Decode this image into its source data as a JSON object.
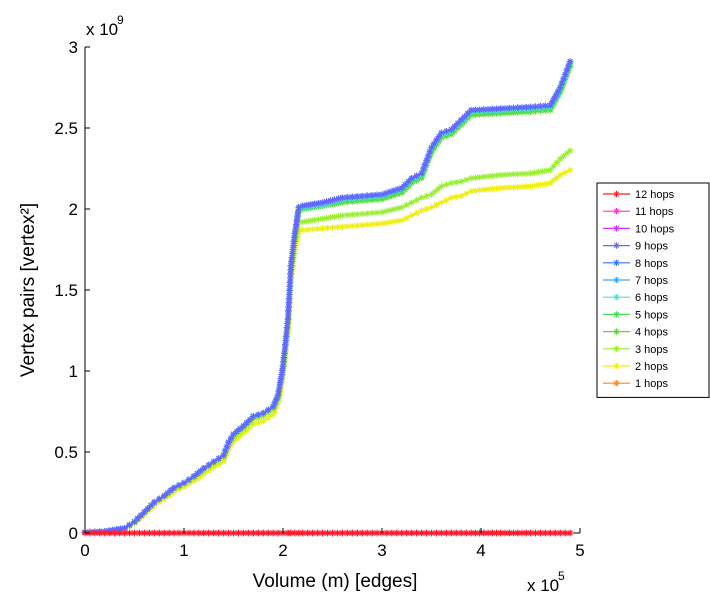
{
  "chart_data": {
    "type": "line",
    "xlabel": "Volume (m) [edges]",
    "ylabel": "Vertex pairs [vertex²]",
    "x_multiplier": "x 10",
    "x_exponent": "5",
    "y_multiplier": "x 10",
    "y_exponent": "9",
    "xlim": [
      0,
      500000
    ],
    "ylim": [
      0,
      3000000000
    ],
    "x_ticks": [
      0,
      100000,
      200000,
      300000,
      400000,
      500000
    ],
    "x_tick_labels": [
      "0",
      "1",
      "2",
      "3",
      "4",
      "5"
    ],
    "y_ticks": [
      0,
      500000000,
      1000000000,
      1500000000,
      2000000000,
      2500000000,
      3000000000
    ],
    "y_tick_labels": [
      "0",
      "0.5",
      "1",
      "1.5",
      "2",
      "2.5",
      "3"
    ],
    "grid": false,
    "legend_position": "right",
    "marker": "asterisk",
    "x": [
      0,
      20000,
      40000,
      50000,
      60000,
      70000,
      80000,
      90000,
      100000,
      110000,
      120000,
      130000,
      140000,
      145000,
      150000,
      160000,
      170000,
      180000,
      190000,
      195000,
      200000,
      205000,
      208000,
      212000,
      216000,
      220000,
      240000,
      260000,
      280000,
      300000,
      320000,
      330000,
      340000,
      350000,
      360000,
      370000,
      380000,
      390000,
      420000,
      450000,
      470000,
      480000,
      490000
    ],
    "series": [
      {
        "name": "12 hops",
        "color": "#ff1a1a",
        "values": [
          0,
          0,
          0,
          0,
          0,
          0,
          0,
          0,
          0,
          0,
          0,
          0,
          0,
          0,
          0,
          0,
          0,
          0,
          0,
          0,
          0,
          0,
          0,
          0,
          0,
          0,
          0,
          0,
          0,
          0,
          0,
          0,
          0,
          0,
          0,
          0,
          0,
          0,
          0,
          0,
          0,
          0,
          0
        ]
      },
      {
        "name": "11 hops",
        "color": "#ff33cc",
        "values": [
          0,
          0,
          0,
          0,
          0,
          0,
          0,
          0,
          0,
          0,
          0,
          0,
          0,
          0,
          0,
          0,
          0,
          0,
          0,
          0,
          0,
          0,
          0,
          0,
          0,
          0,
          0,
          0,
          0,
          0,
          0,
          0,
          0,
          0,
          0,
          0,
          0,
          0,
          0,
          0,
          0,
          0,
          0
        ]
      },
      {
        "name": "10 hops",
        "color": "#cc33ff",
        "values": [
          0,
          0,
          0,
          0,
          0,
          0,
          0,
          0,
          0,
          0,
          0,
          0,
          0,
          0,
          0,
          0,
          0,
          0,
          0,
          0,
          0,
          0,
          0,
          0,
          0,
          0,
          0,
          0,
          0,
          0,
          0,
          0,
          0,
          0,
          0,
          0,
          0,
          0,
          0,
          0,
          0,
          0,
          0
        ]
      },
      {
        "name": "9 hops",
        "color": "#6666ff",
        "values": [
          5000000,
          10000000,
          30000000,
          70000000,
          130000000,
          190000000,
          230000000,
          280000000,
          310000000,
          350000000,
          400000000,
          440000000,
          480000000,
          560000000,
          610000000,
          660000000,
          720000000,
          740000000,
          780000000,
          850000000,
          1030000000,
          1320000000,
          1650000000,
          1850000000,
          2010000000,
          2020000000,
          2040000000,
          2070000000,
          2080000000,
          2090000000,
          2130000000,
          2190000000,
          2220000000,
          2380000000,
          2470000000,
          2490000000,
          2550000000,
          2610000000,
          2620000000,
          2630000000,
          2640000000,
          2750000000,
          2910000000
        ]
      },
      {
        "name": "8 hops",
        "color": "#3377ff",
        "values": [
          5000000,
          10000000,
          30000000,
          70000000,
          130000000,
          190000000,
          230000000,
          280000000,
          310000000,
          350000000,
          400000000,
          440000000,
          480000000,
          560000000,
          610000000,
          660000000,
          720000000,
          740000000,
          780000000,
          850000000,
          1030000000,
          1320000000,
          1650000000,
          1850000000,
          2010000000,
          2020000000,
          2040000000,
          2070000000,
          2080000000,
          2090000000,
          2130000000,
          2190000000,
          2220000000,
          2380000000,
          2470000000,
          2490000000,
          2550000000,
          2610000000,
          2620000000,
          2630000000,
          2640000000,
          2750000000,
          2910000000
        ]
      },
      {
        "name": "7 hops",
        "color": "#33aaff",
        "values": [
          5000000,
          10000000,
          30000000,
          70000000,
          130000000,
          190000000,
          230000000,
          280000000,
          310000000,
          350000000,
          400000000,
          440000000,
          480000000,
          560000000,
          610000000,
          660000000,
          720000000,
          740000000,
          780000000,
          850000000,
          1030000000,
          1320000000,
          1650000000,
          1850000000,
          2010000000,
          2020000000,
          2040000000,
          2070000000,
          2080000000,
          2090000000,
          2130000000,
          2190000000,
          2220000000,
          2380000000,
          2470000000,
          2490000000,
          2550000000,
          2610000000,
          2620000000,
          2630000000,
          2640000000,
          2750000000,
          2910000000
        ]
      },
      {
        "name": "6 hops",
        "color": "#55e0cc",
        "values": [
          5000000,
          10000000,
          30000000,
          70000000,
          130000000,
          190000000,
          230000000,
          280000000,
          310000000,
          350000000,
          400000000,
          440000000,
          480000000,
          560000000,
          610000000,
          660000000,
          720000000,
          740000000,
          780000000,
          850000000,
          1030000000,
          1320000000,
          1650000000,
          1850000000,
          2010000000,
          2010000000,
          2030000000,
          2060000000,
          2070000000,
          2080000000,
          2120000000,
          2180000000,
          2210000000,
          2370000000,
          2460000000,
          2480000000,
          2540000000,
          2600000000,
          2610000000,
          2620000000,
          2630000000,
          2740000000,
          2900000000
        ]
      },
      {
        "name": "5 hops",
        "color": "#44dd55",
        "values": [
          5000000,
          10000000,
          30000000,
          70000000,
          130000000,
          190000000,
          230000000,
          280000000,
          310000000,
          350000000,
          400000000,
          440000000,
          480000000,
          560000000,
          610000000,
          660000000,
          720000000,
          740000000,
          780000000,
          850000000,
          1030000000,
          1320000000,
          1650000000,
          1850000000,
          2000000000,
          2000000000,
          2020000000,
          2050000000,
          2060000000,
          2070000000,
          2110000000,
          2170000000,
          2200000000,
          2360000000,
          2450000000,
          2470000000,
          2530000000,
          2590000000,
          2600000000,
          2610000000,
          2620000000,
          2730000000,
          2890000000
        ]
      },
      {
        "name": "4 hops",
        "color": "#55dd22",
        "values": [
          5000000,
          10000000,
          30000000,
          70000000,
          130000000,
          190000000,
          230000000,
          280000000,
          310000000,
          350000000,
          400000000,
          440000000,
          480000000,
          560000000,
          610000000,
          660000000,
          720000000,
          740000000,
          780000000,
          850000000,
          1030000000,
          1320000000,
          1650000000,
          1850000000,
          2000000000,
          2000000000,
          2020000000,
          2040000000,
          2050000000,
          2060000000,
          2100000000,
          2160000000,
          2190000000,
          2350000000,
          2440000000,
          2460000000,
          2520000000,
          2580000000,
          2590000000,
          2600000000,
          2610000000,
          2720000000,
          2880000000
        ]
      },
      {
        "name": "3 hops",
        "color": "#99ee33",
        "values": [
          5000000,
          10000000,
          25000000,
          65000000,
          125000000,
          185000000,
          225000000,
          270000000,
          300000000,
          340000000,
          385000000,
          425000000,
          465000000,
          540000000,
          590000000,
          640000000,
          700000000,
          720000000,
          760000000,
          830000000,
          1000000000,
          1290000000,
          1600000000,
          1800000000,
          1920000000,
          1920000000,
          1940000000,
          1960000000,
          1970000000,
          1980000000,
          2010000000,
          2040000000,
          2070000000,
          2090000000,
          2140000000,
          2160000000,
          2170000000,
          2190000000,
          2210000000,
          2220000000,
          2240000000,
          2310000000,
          2360000000
        ]
      },
      {
        "name": "2 hops",
        "color": "#eeee11",
        "values": [
          5000000,
          10000000,
          20000000,
          60000000,
          115000000,
          170000000,
          210000000,
          255000000,
          285000000,
          320000000,
          365000000,
          405000000,
          440000000,
          515000000,
          565000000,
          615000000,
          670000000,
          690000000,
          730000000,
          800000000,
          960000000,
          1250000000,
          1550000000,
          1750000000,
          1860000000,
          1870000000,
          1880000000,
          1890000000,
          1900000000,
          1910000000,
          1930000000,
          1960000000,
          1990000000,
          2010000000,
          2040000000,
          2070000000,
          2080000000,
          2110000000,
          2130000000,
          2140000000,
          2160000000,
          2210000000,
          2240000000
        ]
      },
      {
        "name": "1 hops",
        "color": "#ff8822",
        "values": [
          0,
          0,
          0,
          0,
          0,
          0,
          0,
          0,
          0,
          0,
          0,
          0,
          0,
          0,
          0,
          0,
          0,
          0,
          0,
          0,
          0,
          0,
          0,
          0,
          0,
          0,
          0,
          0,
          0,
          0,
          0,
          0,
          0,
          0,
          0,
          0,
          0,
          0,
          0,
          0,
          0,
          0,
          0
        ]
      }
    ]
  }
}
